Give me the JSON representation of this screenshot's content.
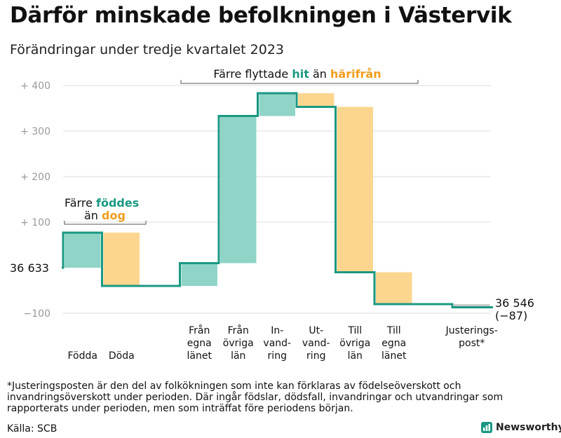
{
  "title": "Därför minskade befolkningen i Västervik",
  "subtitle": "Förändringar under tredje kvartalet 2023",
  "footnote": "*Justeringsposten är den del av folkökningen som inte kan förklaras av födelseöverskott och invandringsöverskott under perioden. Där ingår födslar, dödsfall, invandringar och utvandringar som rapporterats under perioden, men som inträffat före periodens början.",
  "source": "Källa: SCB",
  "logo_text": "Newsworthy",
  "colors": {
    "teal": "#1a9882",
    "teal_fill": "#8fd4c7",
    "orange": "#f29d1c",
    "orange_fill": "#fcd68f",
    "grid": "#dddddd",
    "axis_text": "#999999",
    "bracket": "#555555"
  },
  "annotations": {
    "births": {
      "line1_pre": "Färre ",
      "line1_hl": "föddes",
      "line2_pre": "än ",
      "line2_hl": "dog"
    },
    "migration": {
      "pre": "Färre flyttade ",
      "hl1": "hit",
      "mid": " än ",
      "hl2": "härifrån"
    }
  },
  "chart_data": {
    "type": "waterfall",
    "title": "Därför minskade befolkningen i Västervik",
    "subtitle": "Förändringar under tredje kvartalet 2023",
    "start_value": 36633,
    "start_label": "36  633",
    "end_value": 36546,
    "end_label": "36 546",
    "end_change_label": "(−87)",
    "y_range": [
      -120,
      420
    ],
    "y_ticks": [
      {
        "value": -100,
        "label": "−100"
      },
      {
        "value": 100,
        "label": "+  100"
      },
      {
        "value": 200,
        "label": "+  200"
      },
      {
        "value": 300,
        "label": "+  300"
      },
      {
        "value": 400,
        "label": "+  400"
      }
    ],
    "steps": [
      {
        "label": "Födda",
        "from": 0,
        "to": 77,
        "kind": "inflow"
      },
      {
        "label": "Döda",
        "from": 77,
        "to": -40,
        "kind": "outflow"
      },
      {
        "label": "",
        "from": -40,
        "to": -40,
        "kind": "flat"
      },
      {
        "label": "Från egna länet",
        "from": -40,
        "to": 10,
        "kind": "inflow"
      },
      {
        "label": "Från övriga län",
        "from": 10,
        "to": 333,
        "kind": "inflow"
      },
      {
        "label": "In- vand- ring",
        "from": 333,
        "to": 383,
        "kind": "inflow"
      },
      {
        "label": "Ut- vand- ring",
        "from": 383,
        "to": 353,
        "kind": "outflow"
      },
      {
        "label": "Till övriga län",
        "from": 353,
        "to": -10,
        "kind": "outflow"
      },
      {
        "label": "Till egna länet",
        "from": -10,
        "to": -80,
        "kind": "outflow"
      },
      {
        "label": "",
        "from": -80,
        "to": -80,
        "kind": "flat"
      },
      {
        "label": "Justerings- post*",
        "from": -80,
        "to": -87,
        "kind": "adjustment"
      }
    ]
  }
}
